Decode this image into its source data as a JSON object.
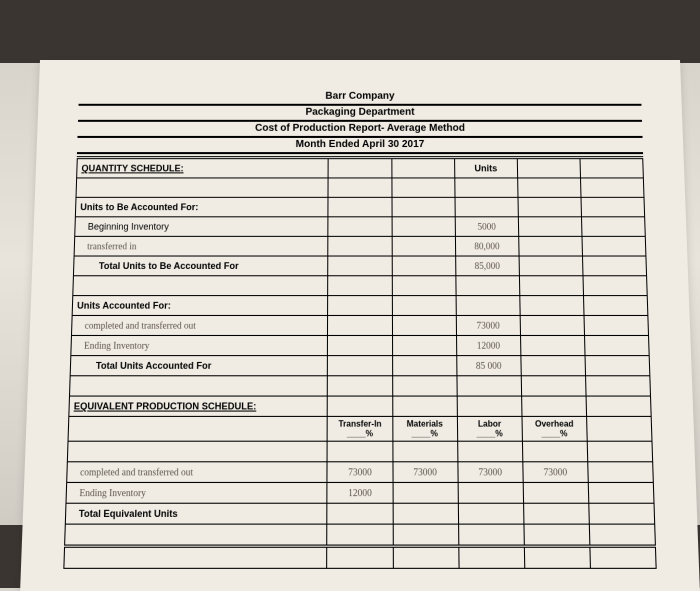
{
  "header": {
    "company": "Barr Company",
    "dept": "Packaging Department",
    "report": "Cost of Production Report- Average Method",
    "period": "Month Ended April 30 2017"
  },
  "qty_schedule": {
    "title": "QUANTITY SCHEDULE:",
    "units_col": "Units",
    "accounted_for_head": "Units to Be Accounted For:",
    "beg_inv": "Beginning Inventory",
    "beg_inv_val": "5000",
    "transferred_in": "transferred in",
    "transferred_in_val": "80,000",
    "total_to_account": "Total Units to Be Accounted For",
    "total_to_account_val": "85,000",
    "accounted_head": "Units Accounted For:",
    "completed_out": "completed and transferred out",
    "completed_out_val": "73000",
    "ending_inv": "Ending Inventory",
    "ending_inv_val": "12000",
    "total_accounted": "Total Units Accounted For",
    "total_accounted_val": "85 000"
  },
  "equiv_schedule": {
    "title": "EQUIVALENT PRODUCTION SCHEDULE:",
    "cols": {
      "transfer_in": "Transfer-In",
      "materials": "Materials",
      "labor": "Labor",
      "overhead": "Overhead",
      "pct": "____%"
    },
    "row1_label": "completed and transferred out",
    "row1": {
      "ti": "73000",
      "mat": "73000",
      "lab": "73000",
      "oh": "73000"
    },
    "row2_label": "Ending Inventory",
    "row2": {
      "ti": "12000",
      "mat": "",
      "lab": "",
      "oh": ""
    },
    "total_label": "Total Equivalent Units"
  }
}
